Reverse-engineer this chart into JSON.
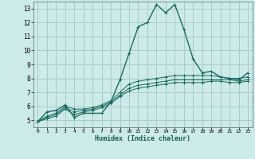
{
  "xlabel": "Humidex (Indice chaleur)",
  "bg_color": "#cceae7",
  "grid_color": "#aacccc",
  "line_color": "#1a6b5e",
  "xlim": [
    -0.5,
    23.5
  ],
  "ylim": [
    4.5,
    13.5
  ],
  "xticks": [
    0,
    1,
    2,
    3,
    4,
    5,
    6,
    7,
    8,
    9,
    10,
    11,
    12,
    13,
    14,
    15,
    16,
    17,
    18,
    19,
    20,
    21,
    22,
    23
  ],
  "yticks": [
    5,
    6,
    7,
    8,
    9,
    10,
    11,
    12,
    13
  ],
  "series": [
    {
      "x": [
        0,
        1,
        2,
        3,
        4,
        5,
        6,
        7,
        8,
        9,
        10,
        11,
        12,
        13,
        14,
        15,
        16,
        17,
        18,
        19,
        20,
        21,
        22,
        23
      ],
      "y": [
        4.9,
        5.6,
        5.7,
        6.1,
        5.2,
        5.5,
        5.5,
        5.5,
        6.3,
        7.9,
        9.8,
        11.7,
        12.0,
        13.3,
        12.7,
        13.3,
        11.5,
        9.4,
        8.4,
        8.5,
        8.1,
        8.0,
        7.9,
        8.4
      ]
    },
    {
      "x": [
        0,
        1,
        2,
        3,
        4,
        5,
        6,
        7,
        8,
        9,
        10,
        11,
        12,
        13,
        14,
        15,
        16,
        17,
        18,
        19,
        20,
        21,
        22,
        23
      ],
      "y": [
        4.9,
        5.3,
        5.5,
        6.0,
        5.8,
        5.8,
        5.9,
        6.1,
        6.4,
        7.0,
        7.6,
        7.8,
        7.9,
        8.0,
        8.1,
        8.2,
        8.2,
        8.2,
        8.2,
        8.2,
        8.1,
        8.0,
        8.0,
        8.1
      ]
    },
    {
      "x": [
        0,
        1,
        2,
        3,
        4,
        5,
        6,
        7,
        8,
        9,
        10,
        11,
        12,
        13,
        14,
        15,
        16,
        17,
        18,
        19,
        20,
        21,
        22,
        23
      ],
      "y": [
        4.9,
        5.2,
        5.4,
        5.9,
        5.6,
        5.7,
        5.8,
        6.0,
        6.3,
        6.8,
        7.3,
        7.5,
        7.6,
        7.7,
        7.8,
        7.9,
        7.9,
        7.9,
        7.9,
        7.9,
        7.9,
        7.9,
        7.8,
        7.9
      ]
    },
    {
      "x": [
        0,
        1,
        2,
        3,
        4,
        5,
        6,
        7,
        8,
        9,
        10,
        11,
        12,
        13,
        14,
        15,
        16,
        17,
        18,
        19,
        20,
        21,
        22,
        23
      ],
      "y": [
        4.9,
        5.1,
        5.3,
        5.8,
        5.4,
        5.6,
        5.7,
        5.9,
        6.2,
        6.7,
        7.1,
        7.3,
        7.4,
        7.5,
        7.6,
        7.7,
        7.7,
        7.7,
        7.7,
        7.8,
        7.8,
        7.7,
        7.7,
        7.8
      ]
    }
  ]
}
